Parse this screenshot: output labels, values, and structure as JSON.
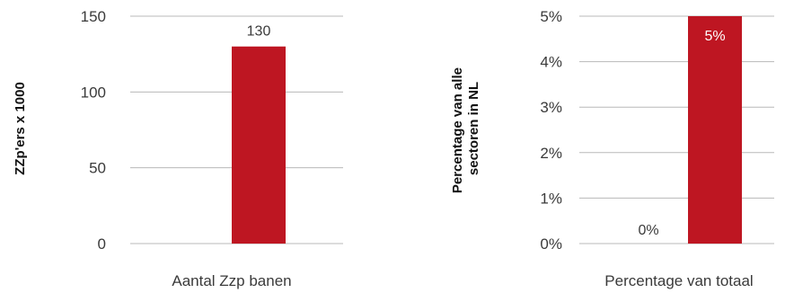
{
  "chart_data": [
    {
      "type": "bar",
      "ylabel": "ZZp'ers x 1000",
      "xlabel": "Aantal Zzp banen",
      "categories": [
        "",
        ""
      ],
      "values": [
        0,
        130
      ],
      "data_labels": [
        "",
        "130"
      ],
      "ylim": [
        0,
        150
      ],
      "yticks": [
        0,
        50,
        100,
        150
      ],
      "ytick_labels": [
        "0",
        "50",
        "100",
        "150"
      ],
      "grid": true,
      "bar_color": "#be1622",
      "label_position": "above"
    },
    {
      "type": "bar",
      "ylabel_lines": [
        "Percentage van alle",
        "sectoren in NL"
      ],
      "xlabel": "Percentage van totaal",
      "categories": [
        "",
        ""
      ],
      "values": [
        0,
        5
      ],
      "data_labels": [
        "0%",
        "5%"
      ],
      "ylim": [
        0,
        5
      ],
      "yticks": [
        0,
        1,
        2,
        3,
        4,
        5
      ],
      "ytick_labels": [
        "0%",
        "1%",
        "2%",
        "3%",
        "4%",
        "5%"
      ],
      "grid": true,
      "bar_color": "#be1622",
      "label_position": "inside-top"
    }
  ]
}
